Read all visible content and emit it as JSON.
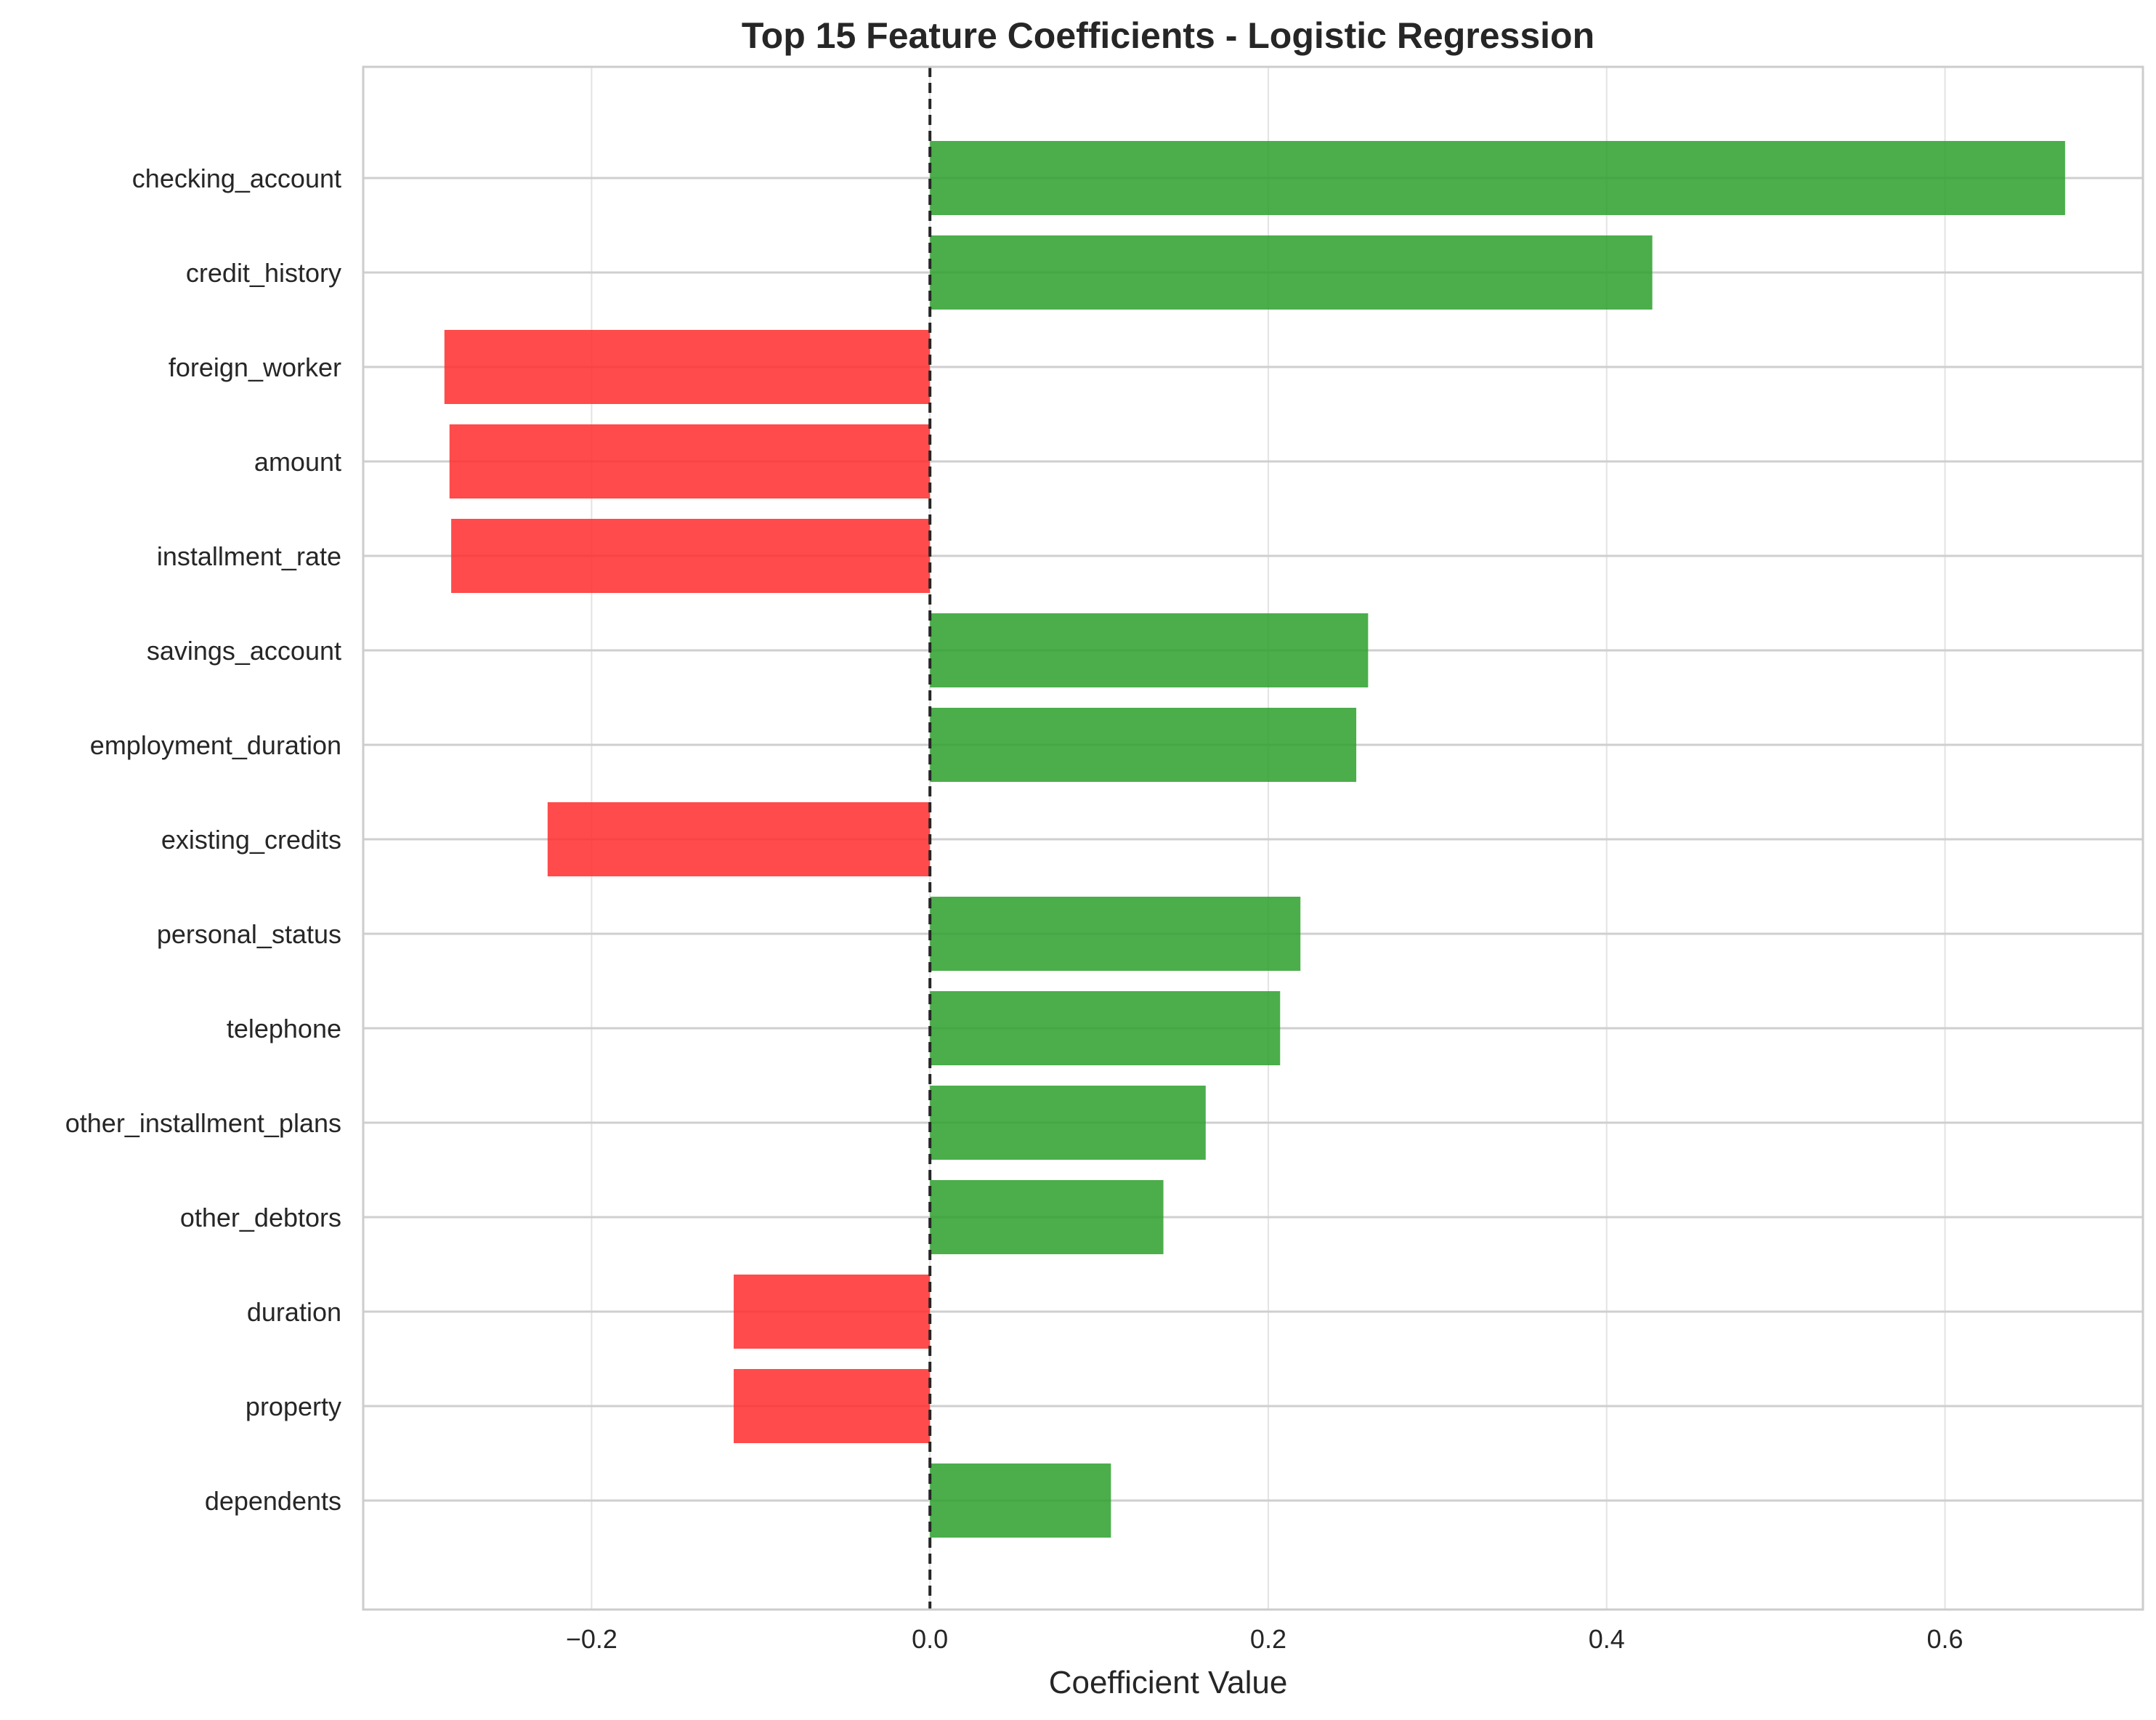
{
  "chart_data": {
    "type": "bar",
    "orientation": "horizontal",
    "title": "Top 15 Feature Coefficients - Logistic Regression",
    "xlabel": "Coefficient Value",
    "ylabel": "",
    "xlim": [
      -0.335,
      0.717
    ],
    "x_ticks": [
      -0.2,
      0.0,
      0.2,
      0.4,
      0.6
    ],
    "x_tick_labels": [
      "−0.2",
      "0.0",
      "0.2",
      "0.4",
      "0.6"
    ],
    "grid": true,
    "zero_line": "dashed",
    "categories": [
      "checking_account",
      "credit_history",
      "foreign_worker",
      "amount",
      "installment_rate",
      "savings_account",
      "employment_duration",
      "existing_credits",
      "personal_status",
      "telephone",
      "other_installment_plans",
      "other_debtors",
      "duration",
      "property",
      "dependents"
    ],
    "values": [
      0.671,
      0.427,
      -0.287,
      -0.284,
      -0.283,
      0.259,
      0.252,
      -0.226,
      0.219,
      0.207,
      0.163,
      0.138,
      -0.116,
      -0.116,
      0.107
    ],
    "colors": {
      "positive": "#2ca02c",
      "negative": "#ff2b2b",
      "grid": "#e3e3e3",
      "frame": "#cccccc",
      "zero_line": "#262626"
    }
  }
}
